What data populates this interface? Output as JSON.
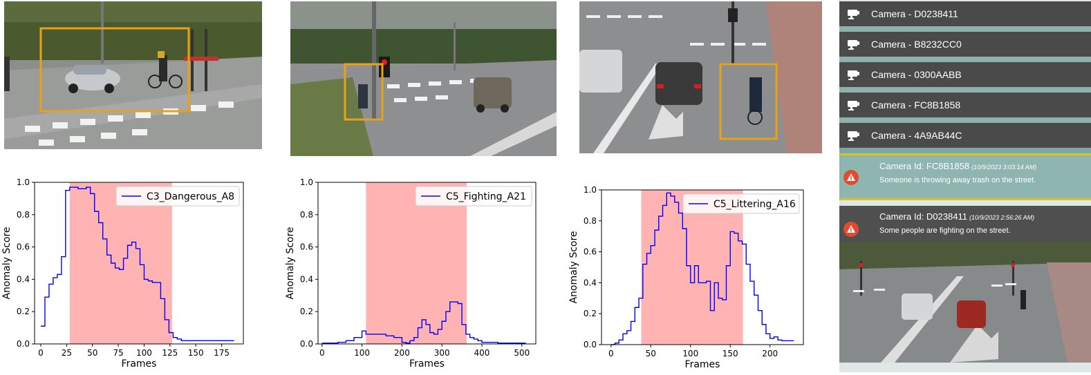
{
  "charts": [
    {
      "type": "line",
      "legend": "C3_Dangerous_A8",
      "xlabel": "Frames",
      "ylabel": "Anomaly Score",
      "xlim": [
        -6,
        196
      ],
      "ylim": [
        0,
        1.0
      ],
      "xticks": [
        0,
        25,
        50,
        75,
        100,
        125,
        150,
        175
      ],
      "yticks": [
        0.0,
        0.2,
        0.4,
        0.6,
        0.8,
        1.0
      ],
      "highlight": [
        28,
        127
      ],
      "x": [
        0,
        4,
        8,
        12,
        16,
        20,
        24,
        28,
        32,
        36,
        40,
        44,
        48,
        52,
        56,
        60,
        64,
        68,
        72,
        76,
        80,
        84,
        88,
        92,
        96,
        100,
        104,
        108,
        112,
        116,
        120,
        124,
        128,
        132,
        136,
        140,
        144,
        148,
        152,
        156,
        160,
        164,
        168,
        172,
        176,
        180,
        184,
        187
      ],
      "y": [
        0.11,
        0.29,
        0.37,
        0.41,
        0.43,
        0.54,
        0.95,
        0.97,
        0.97,
        0.96,
        0.96,
        0.97,
        0.93,
        0.82,
        0.75,
        0.65,
        0.55,
        0.5,
        0.47,
        0.46,
        0.53,
        0.61,
        0.63,
        0.59,
        0.49,
        0.4,
        0.39,
        0.38,
        0.38,
        0.28,
        0.15,
        0.07,
        0.04,
        0.03,
        0.02,
        0.02,
        0.02,
        0.02,
        0.02,
        0.02,
        0.02,
        0.02,
        0.02,
        0.02,
        0.02,
        0.02,
        0.02,
        0.02
      ]
    },
    {
      "type": "line",
      "legend": "C5_Fighting_A21",
      "xlabel": "Frames",
      "ylabel": "Anomaly Score",
      "xlim": [
        -10,
        535
      ],
      "ylim": [
        0,
        1.0
      ],
      "xticks": [
        0,
        100,
        200,
        300,
        400,
        500
      ],
      "yticks": [
        0.0,
        0.2,
        0.4,
        0.6,
        0.8,
        1.0
      ],
      "highlight": [
        110,
        362
      ],
      "x": [
        0,
        20,
        40,
        60,
        80,
        100,
        110,
        120,
        140,
        160,
        180,
        200,
        210,
        220,
        230,
        240,
        250,
        260,
        270,
        280,
        290,
        300,
        310,
        320,
        330,
        340,
        350,
        360,
        370,
        380,
        390,
        400,
        420,
        440,
        460,
        480,
        500,
        510
      ],
      "y": [
        0.005,
        0.005,
        0.01,
        0.02,
        0.04,
        0.08,
        0.06,
        0.06,
        0.06,
        0.05,
        0.04,
        0.01,
        0.005,
        0.02,
        0.04,
        0.1,
        0.15,
        0.12,
        0.07,
        0.06,
        0.09,
        0.14,
        0.2,
        0.26,
        0.26,
        0.25,
        0.12,
        0.06,
        0.04,
        0.03,
        0.02,
        0.01,
        0.01,
        0.005,
        0.005,
        0.005,
        0.005,
        0.005
      ]
    },
    {
      "type": "line",
      "legend": "C5_Littering_A16",
      "xlabel": "Frames",
      "ylabel": "Anomaly Score",
      "xlim": [
        -12,
        242
      ],
      "ylim": [
        0,
        1.0
      ],
      "xticks": [
        0,
        50,
        100,
        150,
        200
      ],
      "yticks": [
        0.0,
        0.2,
        0.4,
        0.6,
        0.8,
        1.0
      ],
      "highlight": [
        38,
        166
      ],
      "x": [
        0,
        5,
        10,
        15,
        20,
        25,
        30,
        35,
        40,
        45,
        50,
        55,
        60,
        65,
        70,
        75,
        80,
        85,
        90,
        95,
        100,
        105,
        110,
        115,
        120,
        125,
        130,
        135,
        140,
        145,
        150,
        155,
        160,
        165,
        170,
        175,
        180,
        185,
        190,
        195,
        200,
        205,
        210,
        215,
        220,
        225,
        230
      ],
      "y": [
        0.0,
        0.01,
        0.03,
        0.07,
        0.09,
        0.15,
        0.24,
        0.3,
        0.52,
        0.59,
        0.64,
        0.74,
        0.83,
        0.9,
        0.98,
        0.96,
        0.92,
        0.85,
        0.75,
        0.51,
        0.4,
        0.51,
        0.4,
        0.4,
        0.41,
        0.22,
        0.4,
        0.3,
        0.29,
        0.51,
        0.73,
        0.72,
        0.67,
        0.65,
        0.52,
        0.41,
        0.32,
        0.22,
        0.13,
        0.07,
        0.04,
        0.05,
        0.03,
        0.025,
        0.025,
        0.025,
        0.025
      ]
    }
  ],
  "panel": {
    "cameras": [
      {
        "label": "Camera - D0238411",
        "icon": "camera-icon"
      },
      {
        "label": "Camera - B8232CC0",
        "icon": "camera-icon"
      },
      {
        "label": "Camera - 0300AABB",
        "icon": "camera-icon"
      },
      {
        "label": "Camera - FC8B1858",
        "icon": "camera-icon"
      },
      {
        "label": "Camera - 4A9AB44C",
        "icon": "camera-icon"
      }
    ],
    "alerts": [
      {
        "camera": "Camera Id: FC8B1858",
        "time": "(10/9/2023 3:03:14 AM)",
        "message": "Someone is throwing away trash on the street.",
        "icon": "warning-icon"
      },
      {
        "camera": "Camera Id: D0238411",
        "time": "(10/9/2023 2:56:26 AM)",
        "message": "Some people are fighting on the street.",
        "icon": "warning-icon"
      }
    ]
  },
  "colors": {
    "line": "#0000ff",
    "highlight": "#ffb3b3",
    "box": "#e5a21a",
    "row_bg": "#4a4a4a",
    "alert_icon": "#e24b2f"
  }
}
